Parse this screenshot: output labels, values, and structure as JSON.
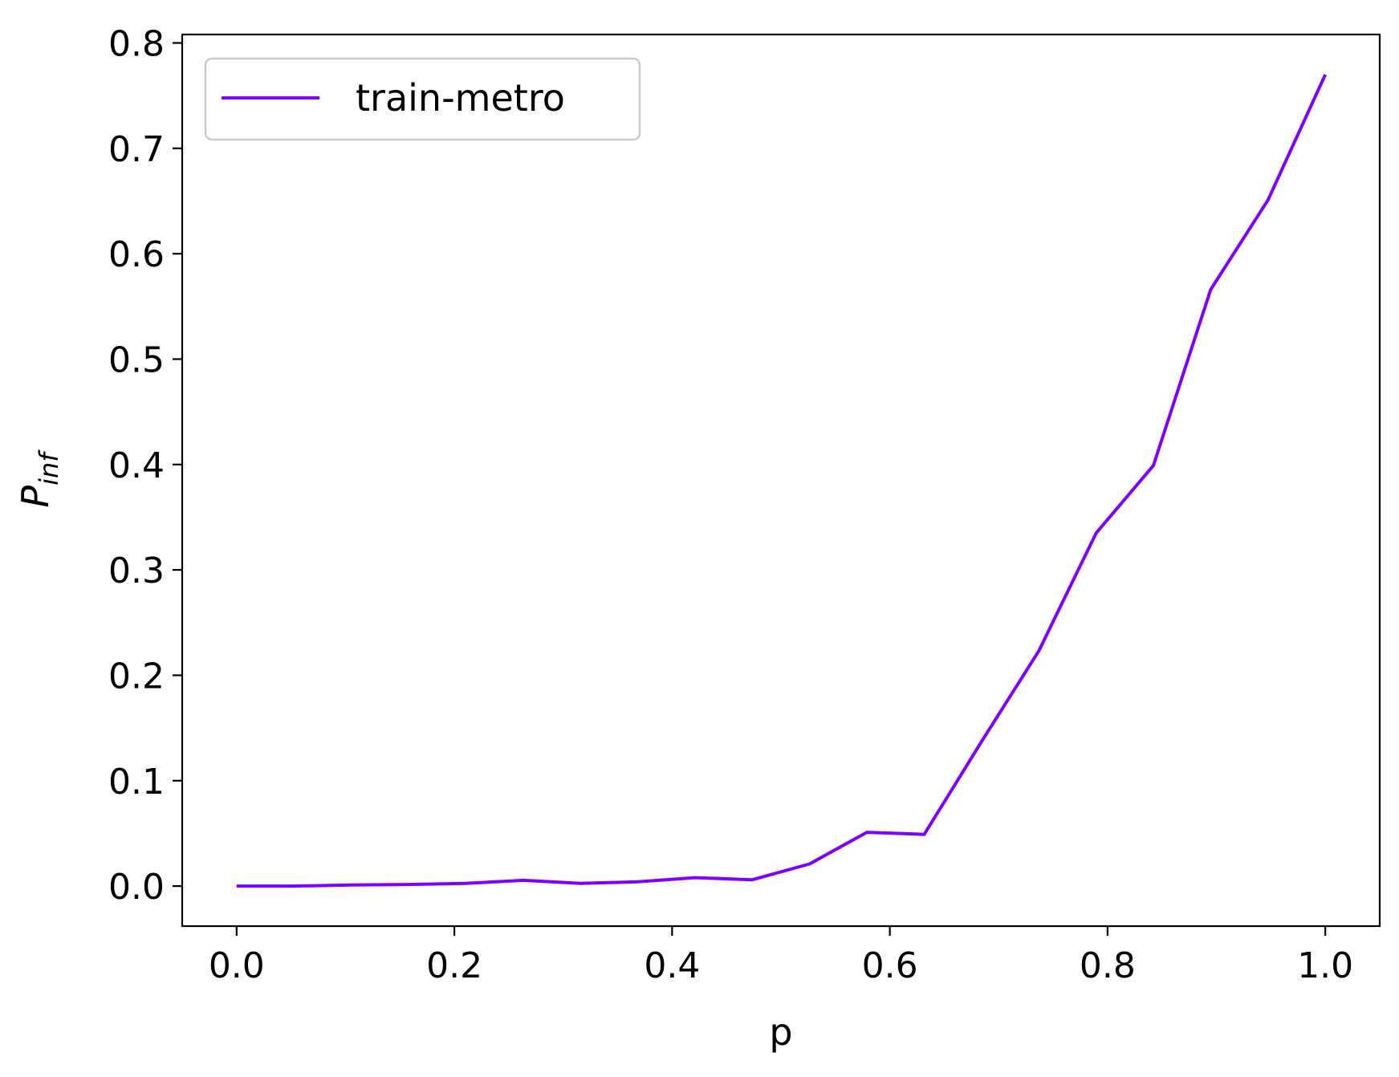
{
  "chart_data": {
    "type": "line",
    "xlabel": "p",
    "ylabel": "P",
    "ylabel_subscript": "inf",
    "xlim": [
      -0.05,
      1.05
    ],
    "ylim": [
      -0.038,
      0.808
    ],
    "xticks": [
      0.0,
      0.2,
      0.4,
      0.6,
      0.8,
      1.0
    ],
    "xtick_labels": [
      "0.0",
      "0.2",
      "0.4",
      "0.6",
      "0.8",
      "1.0"
    ],
    "yticks": [
      0.0,
      0.1,
      0.2,
      0.3,
      0.4,
      0.5,
      0.6,
      0.7,
      0.8
    ],
    "ytick_labels": [
      "0.0",
      "0.1",
      "0.2",
      "0.3",
      "0.4",
      "0.5",
      "0.6",
      "0.7",
      "0.8"
    ],
    "grid": false,
    "legend_position": "top-left",
    "series": [
      {
        "name": "train-metro",
        "color": "#7f00ff",
        "x": [
          0.0,
          0.0526,
          0.1053,
          0.1579,
          0.2105,
          0.2632,
          0.3158,
          0.3684,
          0.4211,
          0.4737,
          0.5263,
          0.5789,
          0.6316,
          0.6842,
          0.7368,
          0.7895,
          0.8421,
          0.8947,
          0.9474,
          1.0
        ],
        "y": [
          0.0,
          0.0,
          0.001,
          0.0015,
          0.0025,
          0.0055,
          0.0025,
          0.004,
          0.008,
          0.006,
          0.021,
          0.051,
          0.049,
          0.137,
          0.223,
          0.335,
          0.399,
          0.566,
          0.651,
          0.77
        ]
      }
    ]
  }
}
